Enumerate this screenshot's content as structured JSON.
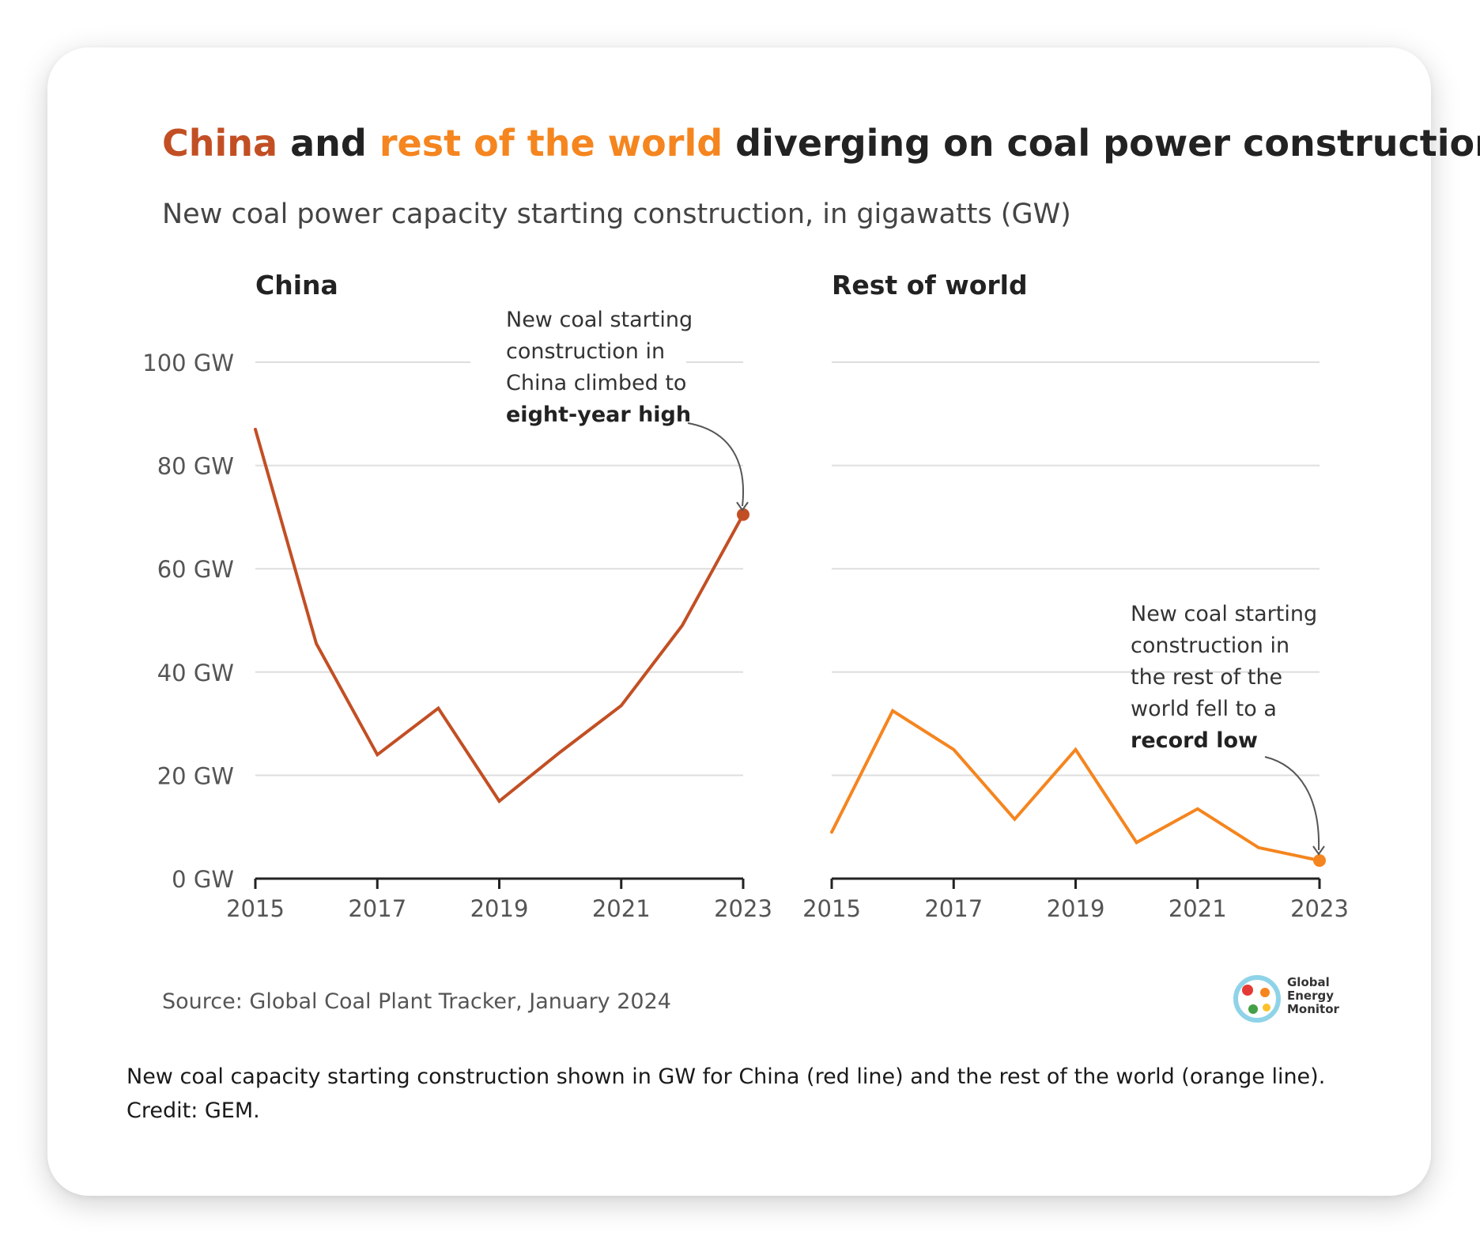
{
  "title": {
    "part1": "China",
    "part2": " and ",
    "part3": "rest of the world",
    "part4": " diverging on coal power construction"
  },
  "subtitle": "New coal power capacity starting construction, in gigawatts (GW)",
  "colors": {
    "china": "#c24f24",
    "rest": "#f5851f",
    "text": "#222222",
    "muted": "#555555",
    "grid": "#dedede"
  },
  "chart_data": [
    {
      "type": "line",
      "panel_title": "China",
      "x": [
        2015,
        2016,
        2017,
        2018,
        2019,
        2020,
        2021,
        2022,
        2023
      ],
      "values": [
        87,
        45.5,
        24,
        33,
        15,
        24.5,
        33.5,
        49,
        70.5
      ],
      "x_ticks": [
        "2015",
        "2017",
        "2019",
        "2021",
        "2023"
      ],
      "y_ticks": [
        "0 GW",
        "20 GW",
        "40 GW",
        "60 GW",
        "80 GW",
        "100 GW"
      ],
      "ylim": [
        0,
        100
      ],
      "annotation": {
        "lines": [
          "New coal starting",
          "construction in",
          "China climbed to"
        ],
        "bold": "eight-year high"
      }
    },
    {
      "type": "line",
      "panel_title": "Rest of world",
      "x": [
        2015,
        2016,
        2017,
        2018,
        2019,
        2020,
        2021,
        2022,
        2023
      ],
      "values": [
        9,
        32.5,
        25,
        11.5,
        25,
        7,
        13.5,
        6,
        3.5
      ],
      "x_ticks": [
        "2015",
        "2017",
        "2019",
        "2021",
        "2023"
      ],
      "ylim": [
        0,
        100
      ],
      "annotation": {
        "lines": [
          "New coal starting",
          "construction in",
          "the rest of the",
          "world fell to a"
        ],
        "bold": "record low"
      }
    }
  ],
  "source": "Source: Global Coal Plant Tracker, January 2024",
  "logo": {
    "lines": [
      "Global",
      "Energy",
      "Monitor"
    ]
  },
  "caption": "New coal capacity starting construction shown in GW for China (red line) and the rest of the world (orange line). Credit: GEM."
}
